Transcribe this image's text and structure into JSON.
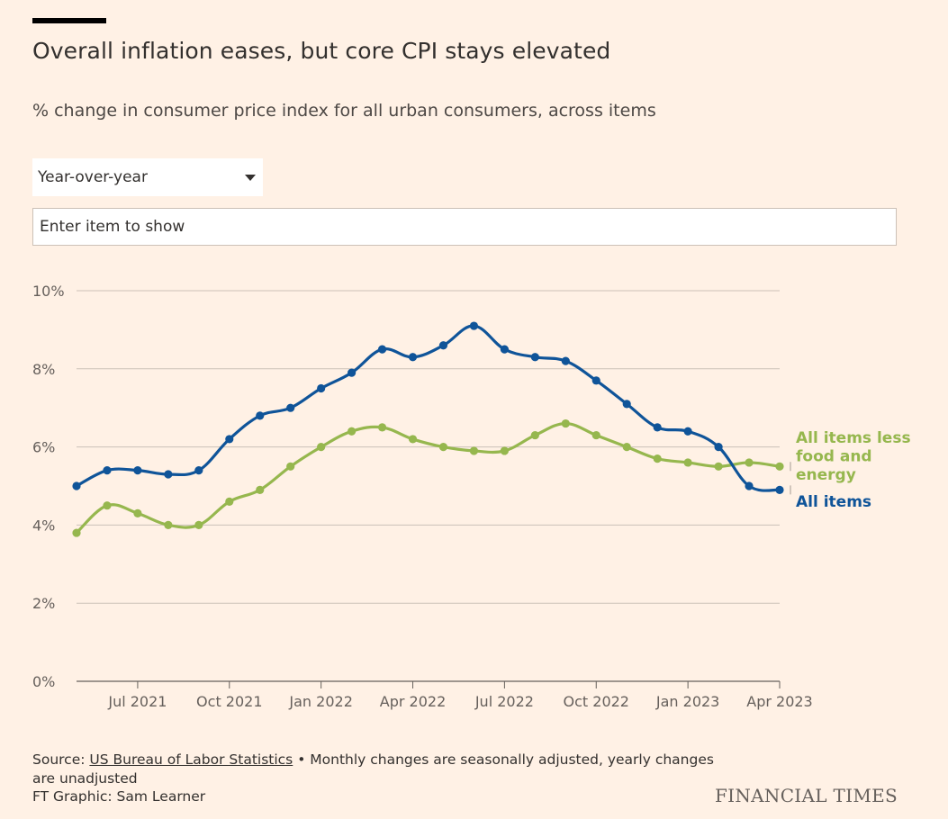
{
  "title": "Overall inflation eases, but core CPI stays elevated",
  "subtitle": "% change in consumer price index for all urban consumers, across items",
  "controls": {
    "period_selected": "Year-over-year",
    "item_search_placeholder": "Enter item to show"
  },
  "footer": {
    "source_prefix": "Source: ",
    "source_link": "US Bureau of Labor Statistics",
    "source_note": " • Monthly changes are seasonally adjusted, yearly changes are unadjusted",
    "credit": "FT Graphic: Sam Learner",
    "brand": "FINANCIAL TIMES"
  },
  "colors": {
    "background": "#fff1e5",
    "all_items": "#0f5499",
    "core": "#96b74e",
    "gridline": "#ccc1b7",
    "text": "#33302e"
  },
  "chart_data": {
    "type": "line",
    "x": [
      "2021-05",
      "2021-06",
      "2021-07",
      "2021-08",
      "2021-09",
      "2021-10",
      "2021-11",
      "2021-12",
      "2022-01",
      "2022-02",
      "2022-03",
      "2022-04",
      "2022-05",
      "2022-06",
      "2022-07",
      "2022-08",
      "2022-09",
      "2022-10",
      "2022-11",
      "2022-12",
      "2023-01",
      "2023-02",
      "2023-03",
      "2023-04"
    ],
    "series": [
      {
        "name": "All items",
        "color": "#0f5499",
        "values": [
          5.0,
          5.4,
          5.4,
          5.3,
          5.4,
          6.2,
          6.8,
          7.0,
          7.5,
          7.9,
          8.5,
          8.3,
          8.6,
          9.1,
          8.5,
          8.3,
          8.2,
          7.7,
          7.1,
          6.5,
          6.4,
          6.0,
          5.0,
          4.9
        ]
      },
      {
        "name": "All items less food and energy",
        "color": "#96b74e",
        "values": [
          3.8,
          4.5,
          4.3,
          4.0,
          4.0,
          4.6,
          4.9,
          5.5,
          6.0,
          6.4,
          6.5,
          6.2,
          6.0,
          5.9,
          5.9,
          6.3,
          6.6,
          6.3,
          6.0,
          5.7,
          5.6,
          5.5,
          5.6,
          5.5
        ]
      }
    ],
    "series_labels": [
      {
        "series": 1,
        "lines": [
          "All items less",
          "food and",
          "energy"
        ]
      },
      {
        "series": 0,
        "lines": [
          "All items"
        ]
      }
    ],
    "x_ticks": [
      {
        "x": "2021-07",
        "label": "Jul 2021"
      },
      {
        "x": "2021-10",
        "label": "Oct 2021"
      },
      {
        "x": "2022-01",
        "label": "Jan 2022"
      },
      {
        "x": "2022-04",
        "label": "Apr 2022"
      },
      {
        "x": "2022-07",
        "label": "Jul 2022"
      },
      {
        "x": "2022-10",
        "label": "Oct 2022"
      },
      {
        "x": "2023-01",
        "label": "Jan 2023"
      },
      {
        "x": "2023-04",
        "label": "Apr 2023"
      }
    ],
    "y_ticks": [
      {
        "value": 0,
        "label": "0%"
      },
      {
        "value": 2,
        "label": "2%"
      },
      {
        "value": 4,
        "label": "4%"
      },
      {
        "value": 6,
        "label": "6%"
      },
      {
        "value": 8,
        "label": "8%"
      },
      {
        "value": 10,
        "label": "10%"
      }
    ],
    "ylim": [
      0,
      10
    ],
    "grid": true,
    "legend": "direct labels at right end of lines"
  }
}
